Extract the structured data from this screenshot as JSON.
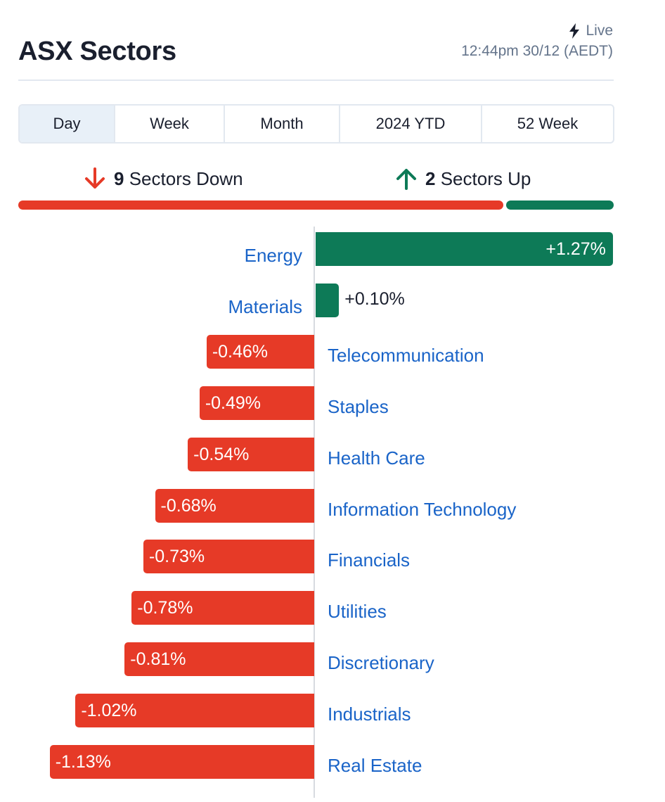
{
  "header": {
    "title": "ASX Sectors",
    "live_label": "Live",
    "timestamp": "12:44pm 30/12 (AEDT)"
  },
  "tabs": [
    {
      "label": "Day",
      "active": true
    },
    {
      "label": "Week",
      "active": false
    },
    {
      "label": "Month",
      "active": false
    },
    {
      "label": "2024 YTD",
      "active": false
    },
    {
      "label": "52 Week",
      "active": false
    }
  ],
  "breadth": {
    "down_count": "9",
    "down_label": "Sectors Down",
    "up_count": "2",
    "up_label": "Sectors Up",
    "down_color": "#e63a27",
    "up_color": "#0d7a57"
  },
  "colors": {
    "negative": "#e63a27",
    "positive": "#0d7a57",
    "link": "#1a64c8"
  },
  "chart_data": {
    "type": "bar",
    "orientation": "horizontal",
    "categories": [
      "Energy",
      "Materials",
      "Telecommunication",
      "Staples",
      "Health Care",
      "Information Technology",
      "Financials",
      "Utilities",
      "Discretionary",
      "Industrials",
      "Real Estate"
    ],
    "values": [
      1.27,
      0.1,
      -0.46,
      -0.49,
      -0.54,
      -0.68,
      -0.73,
      -0.78,
      -0.81,
      -1.02,
      -1.13
    ],
    "value_labels": [
      "+1.27%",
      "+0.10%",
      "-0.46%",
      "-0.49%",
      "-0.54%",
      "-0.68%",
      "-0.73%",
      "-0.78%",
      "-0.81%",
      "-1.02%",
      "-1.13%"
    ]
  }
}
